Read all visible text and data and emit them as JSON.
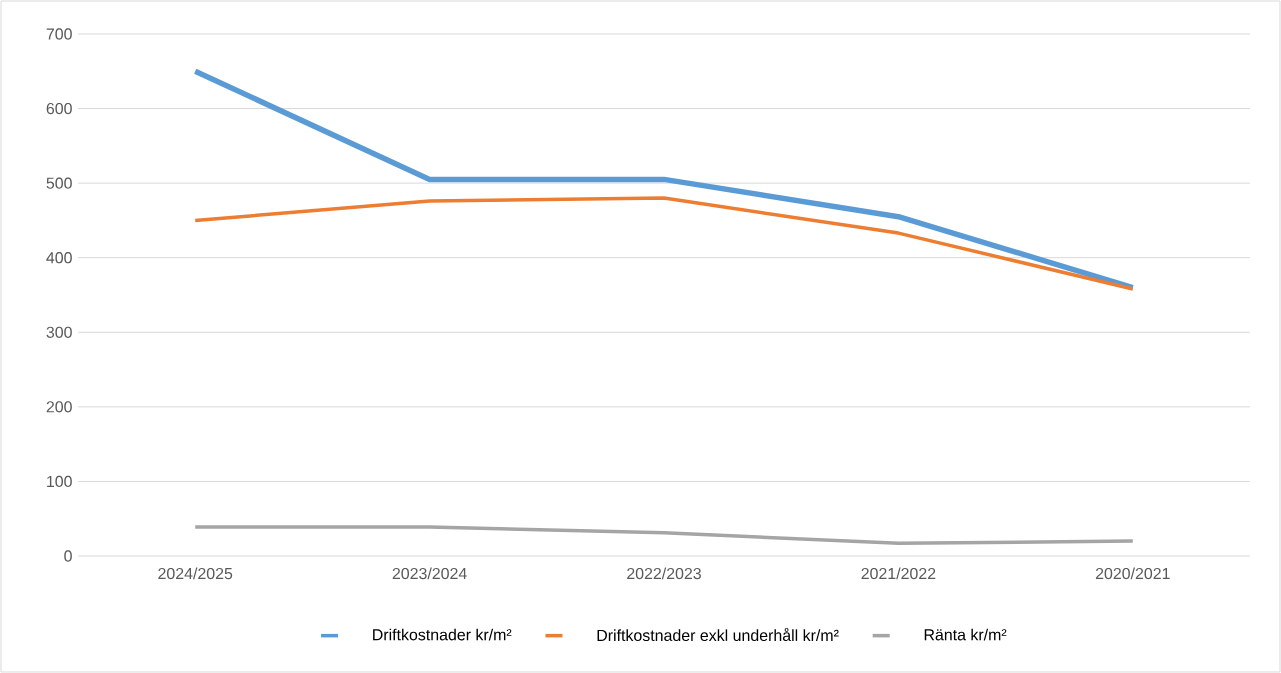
{
  "chart_data": {
    "type": "line",
    "categories": [
      "2024/2025",
      "2023/2024",
      "2022/2023",
      "2021/2022",
      "2020/2021"
    ],
    "series": [
      {
        "name": "Driftkostnader kr/m²",
        "color": "#5b9bd5",
        "values": [
          650,
          505,
          505,
          455,
          360
        ]
      },
      {
        "name": "Driftkostnader exkl underhåll kr/m²",
        "color": "#ed7d31",
        "values": [
          450,
          476,
          480,
          433,
          358
        ]
      },
      {
        "name": "Ränta kr/m²",
        "color": "#a5a5a5",
        "values": [
          39,
          39,
          31,
          17,
          20
        ]
      }
    ],
    "ylim": [
      0,
      700
    ],
    "yticks": [
      0,
      100,
      200,
      300,
      400,
      500,
      600,
      700
    ],
    "grid": "y",
    "legend": "bottom",
    "marker": "none",
    "line_style": "solid"
  }
}
